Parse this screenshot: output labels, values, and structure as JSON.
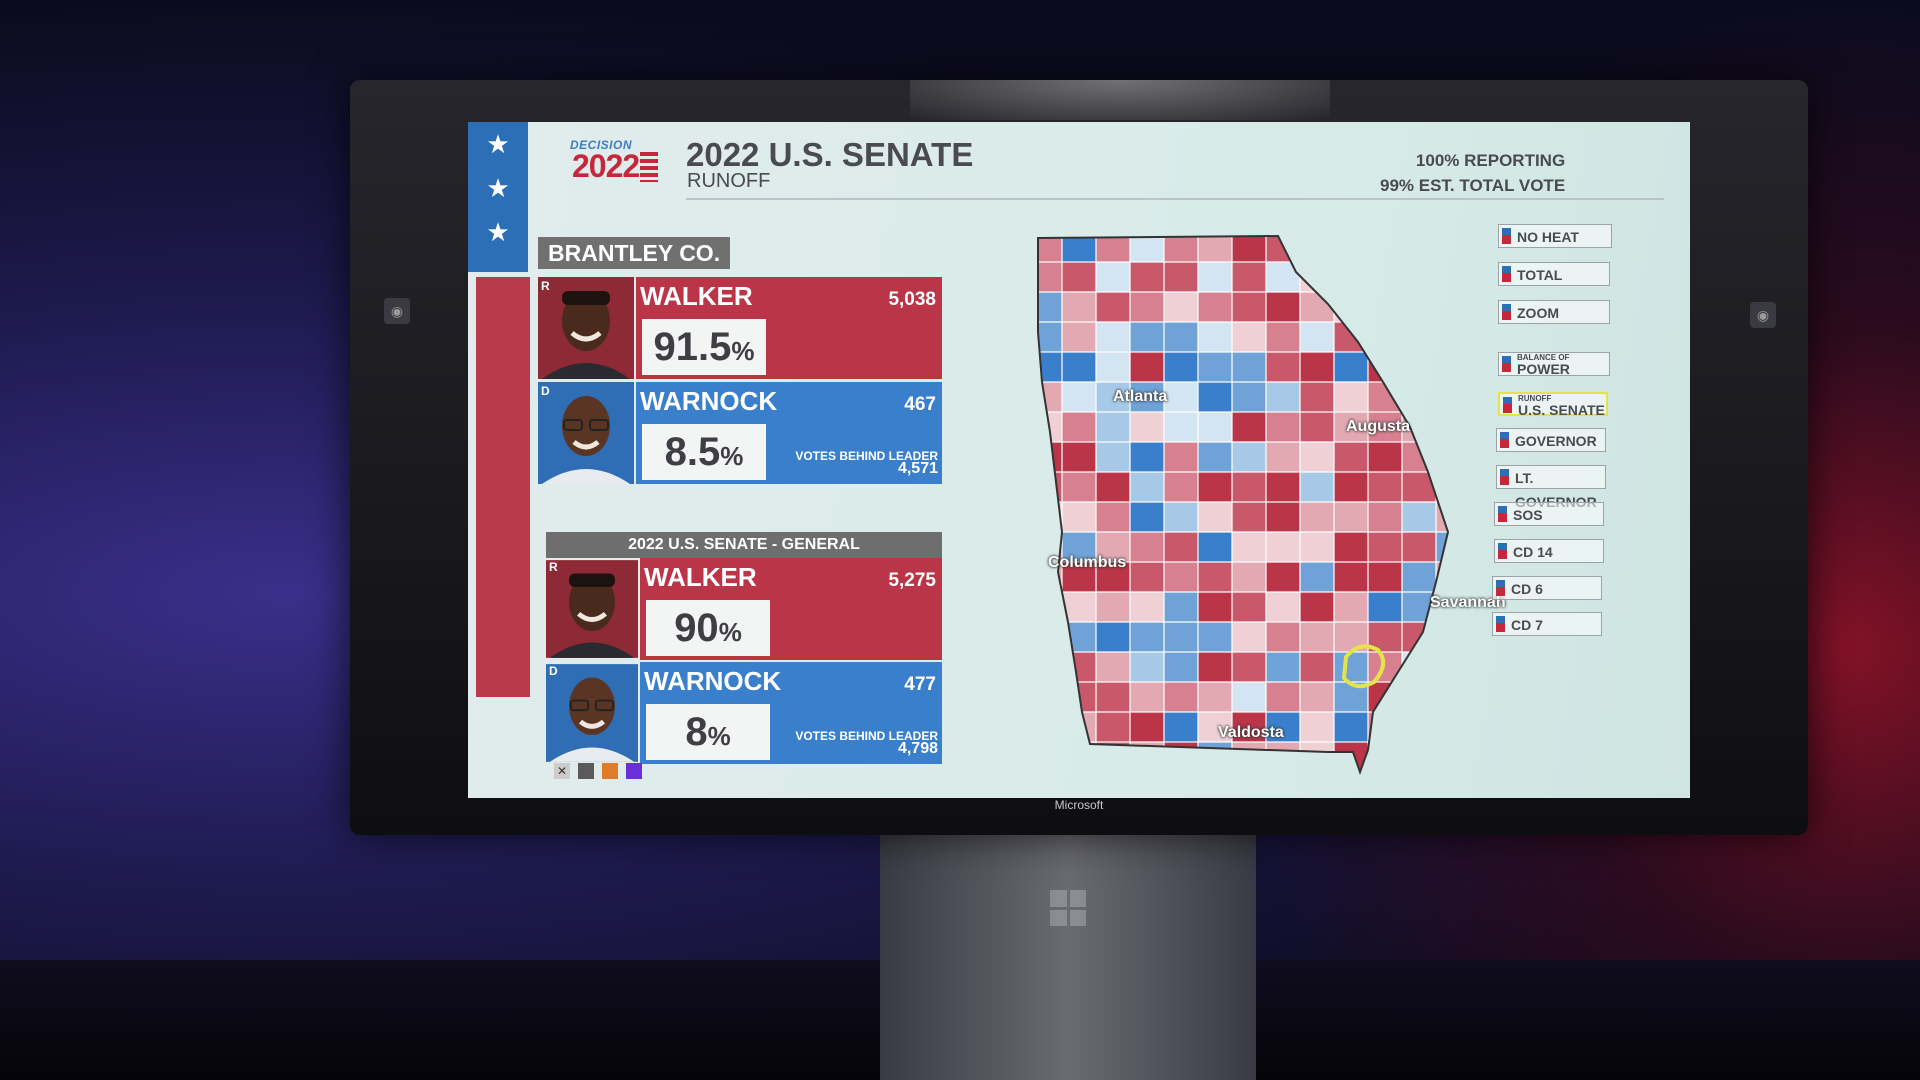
{
  "device": {
    "brand": "Microsoft"
  },
  "header": {
    "logo_word": "DECISION",
    "logo_year": "2022",
    "title": "2022 U.S. SENATE",
    "subtitle": "RUNOFF",
    "reporting": "100% REPORTING",
    "est_vote": "99% EST. TOTAL VOTE"
  },
  "county": {
    "label": "BRANTLEY CO."
  },
  "runoff": {
    "candidates": [
      {
        "party": "R",
        "name": "WALKER",
        "votes": "5,038",
        "pct": "91.5",
        "pct_sign": "%"
      },
      {
        "party": "D",
        "name": "WARNOCK",
        "votes": "467",
        "pct": "8.5",
        "pct_sign": "%",
        "behind_label": "VOTES BEHIND LEADER",
        "behind_value": "4,571"
      }
    ]
  },
  "general": {
    "header": "2022 U.S. SENATE - GENERAL",
    "candidates": [
      {
        "party": "R",
        "name": "WALKER",
        "votes": "5,275",
        "pct": "90",
        "pct_sign": "%"
      },
      {
        "party": "D",
        "name": "WARNOCK",
        "votes": "477",
        "pct": "8",
        "pct_sign": "%",
        "behind_label": "VOTES BEHIND LEADER",
        "behind_value": "4,798"
      }
    ]
  },
  "map": {
    "cities": [
      "Atlanta",
      "Augusta",
      "Columbus",
      "Savannah",
      "Valdosta"
    ],
    "colors": {
      "rep": "#b93547",
      "dem": "#3a7fcc",
      "highlight": "#e4e34a"
    }
  },
  "menu": {
    "buttons": [
      {
        "label": "NO HEAT"
      },
      {
        "label": "TOTAL"
      },
      {
        "label": "ZOOM"
      },
      {
        "small": "BALANCE OF",
        "label": "POWER"
      },
      {
        "small": "RUNOFF",
        "label": "U.S. SENATE",
        "active": true
      },
      {
        "label": "GOVERNOR"
      },
      {
        "label": "LT. GOVERNOR"
      },
      {
        "label": "SOS"
      },
      {
        "label": "CD 14"
      },
      {
        "label": "CD 6"
      },
      {
        "label": "CD 7"
      }
    ]
  },
  "swatches": [
    "close",
    "#5a5a5a",
    "#e07b2a",
    "#6a2fd6"
  ]
}
